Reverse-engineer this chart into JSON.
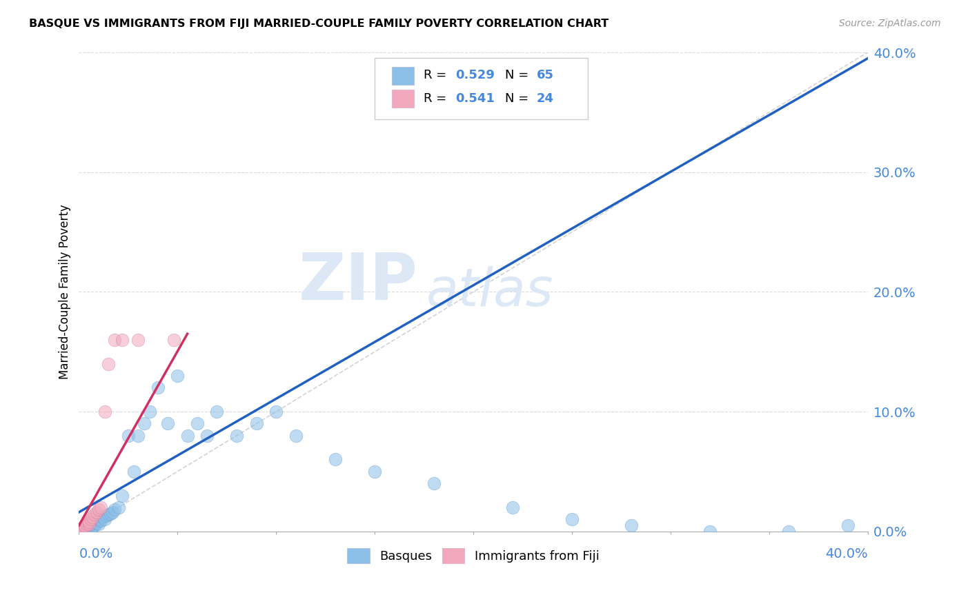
{
  "title": "BASQUE VS IMMIGRANTS FROM FIJI MARRIED-COUPLE FAMILY POVERTY CORRELATION CHART",
  "source": "Source: ZipAtlas.com",
  "ylabel": "Married-Couple Family Poverty",
  "watermark_line1": "ZIP",
  "watermark_line2": "atlas",
  "legend_label_blue": "Basques",
  "legend_label_pink": "Immigrants from Fiji",
  "blue_color": "#8bbfe8",
  "pink_color": "#f2a8bc",
  "line_blue": "#2060c0",
  "line_pink": "#d03060",
  "diag_color": "#c8c8c8",
  "grid_color": "#cccccc",
  "axis_label_color": "#4488dd",
  "watermark_color": "#dce8f5",
  "basques_x": [
    0.0,
    0.0,
    0.0,
    0.0,
    0.0,
    0.001,
    0.001,
    0.001,
    0.001,
    0.002,
    0.002,
    0.002,
    0.003,
    0.003,
    0.003,
    0.003,
    0.004,
    0.004,
    0.004,
    0.005,
    0.005,
    0.006,
    0.006,
    0.007,
    0.007,
    0.008,
    0.008,
    0.009,
    0.01,
    0.01,
    0.011,
    0.012,
    0.013,
    0.014,
    0.015,
    0.016,
    0.017,
    0.018,
    0.02,
    0.022,
    0.025,
    0.028,
    0.03,
    0.033,
    0.036,
    0.04,
    0.045,
    0.05,
    0.055,
    0.06,
    0.065,
    0.07,
    0.08,
    0.09,
    0.1,
    0.11,
    0.13,
    0.15,
    0.18,
    0.22,
    0.25,
    0.28,
    0.32,
    0.36,
    0.39
  ],
  "basques_y": [
    0.0,
    0.0,
    0.0,
    0.0,
    0.001,
    0.0,
    0.001,
    0.001,
    0.002,
    0.001,
    0.002,
    0.003,
    0.001,
    0.002,
    0.003,
    0.004,
    0.002,
    0.003,
    0.005,
    0.003,
    0.005,
    0.003,
    0.006,
    0.004,
    0.007,
    0.005,
    0.008,
    0.007,
    0.006,
    0.01,
    0.009,
    0.012,
    0.01,
    0.013,
    0.014,
    0.015,
    0.016,
    0.018,
    0.02,
    0.03,
    0.08,
    0.05,
    0.08,
    0.09,
    0.1,
    0.12,
    0.09,
    0.13,
    0.08,
    0.09,
    0.08,
    0.1,
    0.08,
    0.09,
    0.1,
    0.08,
    0.06,
    0.05,
    0.04,
    0.02,
    0.01,
    0.005,
    0.0,
    0.0,
    0.005
  ],
  "fiji_x": [
    0.0,
    0.0,
    0.0,
    0.001,
    0.001,
    0.002,
    0.002,
    0.003,
    0.003,
    0.004,
    0.005,
    0.005,
    0.006,
    0.007,
    0.008,
    0.009,
    0.01,
    0.011,
    0.013,
    0.015,
    0.018,
    0.022,
    0.03,
    0.048
  ],
  "fiji_y": [
    0.0,
    0.0,
    0.001,
    0.001,
    0.002,
    0.002,
    0.003,
    0.004,
    0.005,
    0.006,
    0.006,
    0.008,
    0.01,
    0.012,
    0.014,
    0.016,
    0.018,
    0.02,
    0.1,
    0.14,
    0.16,
    0.16,
    0.16,
    0.16
  ],
  "blue_line_x0": 0.0,
  "blue_line_y0": 0.016,
  "blue_line_x1": 0.4,
  "blue_line_y1": 0.395,
  "pink_line_x0": 0.0,
  "pink_line_y0": 0.005,
  "pink_line_x1": 0.055,
  "pink_line_y1": 0.165,
  "xlim": [
    0.0,
    0.4
  ],
  "ylim": [
    0.0,
    0.4
  ],
  "yticks": [
    0.0,
    0.1,
    0.2,
    0.3,
    0.4
  ],
  "figsize": [
    14.06,
    8.92
  ],
  "dpi": 100
}
